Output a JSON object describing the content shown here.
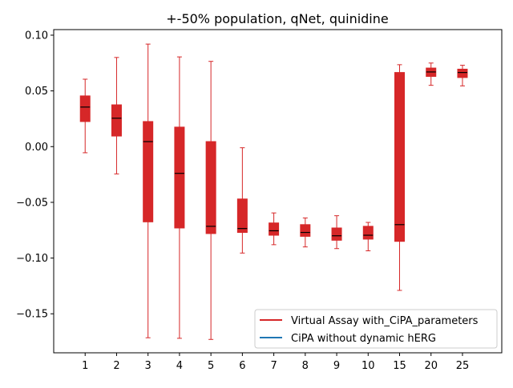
{
  "chart_data": {
    "type": "boxplot",
    "title": "+-50% population, qNet, quinidine",
    "xlabel": "",
    "ylabel": "",
    "categories": [
      "1",
      "2",
      "3",
      "4",
      "5",
      "6",
      "7",
      "8",
      "9",
      "10",
      "15",
      "20",
      "25"
    ],
    "ylim": [
      -0.185,
      0.105
    ],
    "yticks": [
      {
        "value": 0.1,
        "label": "0.10"
      },
      {
        "value": 0.05,
        "label": "0.05"
      },
      {
        "value": 0.0,
        "label": "0.00"
      },
      {
        "value": -0.05,
        "label": "−0.05"
      },
      {
        "value": -0.1,
        "label": "−0.10"
      },
      {
        "value": -0.15,
        "label": "−0.15"
      }
    ],
    "series": [
      {
        "name": "Virtual Assay with_CiPA_parameters",
        "color": "#d62728",
        "boxes": [
          {
            "whisker_low": -0.0055,
            "q1": 0.0225,
            "median": 0.0355,
            "q3": 0.0455,
            "whisker_high": 0.0605
          },
          {
            "whisker_low": -0.0245,
            "q1": 0.0095,
            "median": 0.0255,
            "q3": 0.0375,
            "whisker_high": 0.08
          },
          {
            "whisker_low": -0.1715,
            "q1": -0.0675,
            "median": 0.0045,
            "q3": 0.0225,
            "whisker_high": 0.092
          },
          {
            "whisker_low": -0.172,
            "q1": -0.073,
            "median": -0.024,
            "q3": 0.0175,
            "whisker_high": 0.0805
          },
          {
            "whisker_low": -0.173,
            "q1": -0.078,
            "median": -0.0715,
            "q3": 0.0045,
            "whisker_high": 0.0765
          },
          {
            "whisker_low": -0.0955,
            "q1": -0.077,
            "median": -0.0735,
            "q3": -0.047,
            "whisker_high": -0.001
          },
          {
            "whisker_low": -0.088,
            "q1": -0.0795,
            "median": -0.0755,
            "q3": -0.0685,
            "whisker_high": -0.0595
          },
          {
            "whisker_low": -0.09,
            "q1": -0.0805,
            "median": -0.077,
            "q3": -0.07,
            "whisker_high": -0.064
          },
          {
            "whisker_low": -0.0915,
            "q1": -0.084,
            "median": -0.08,
            "q3": -0.073,
            "whisker_high": -0.062
          },
          {
            "whisker_low": -0.0935,
            "q1": -0.083,
            "median": -0.0795,
            "q3": -0.0715,
            "whisker_high": -0.068
          },
          {
            "whisker_low": -0.129,
            "q1": -0.085,
            "median": -0.07,
            "q3": 0.0665,
            "whisker_high": 0.0735
          },
          {
            "whisker_low": 0.055,
            "q1": 0.063,
            "median": 0.067,
            "q3": 0.0705,
            "whisker_high": 0.075
          },
          {
            "whisker_low": 0.0545,
            "q1": 0.062,
            "median": 0.0665,
            "q3": 0.0695,
            "whisker_high": 0.073
          }
        ]
      },
      {
        "name": "CiPA without dynamic hERG",
        "color": "#1f77b4",
        "boxes": []
      }
    ],
    "median_color": "#000000",
    "legend": {
      "position": "lower-right",
      "entries": [
        {
          "label": "Virtual Assay with_CiPA_parameters",
          "color": "#d62728"
        },
        {
          "label": "CiPA without dynamic hERG",
          "color": "#1f77b4"
        }
      ]
    },
    "grid": false
  }
}
